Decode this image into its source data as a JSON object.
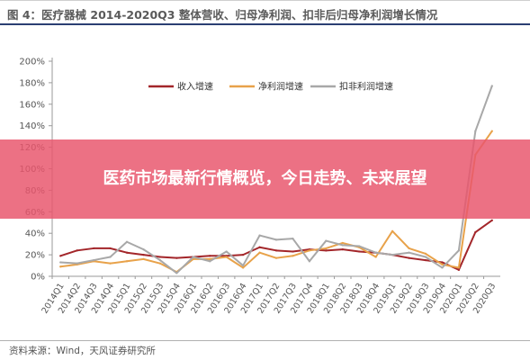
{
  "figure_title": "图 4：医疗器械 2014-2020Q3 整体营收、归母净利润、扣非后归母净利润增长情况",
  "banner_text": "医药市场最新行情概览，今日走势、未来展望",
  "source": "资料来源：Wind，天风证券研究所",
  "chart_data": {
    "type": "line",
    "categories": [
      "2014Q1",
      "2014Q2",
      "2014Q3",
      "2014Q4",
      "2015Q1",
      "2015Q2",
      "2015Q3",
      "2015Q4",
      "2016Q1",
      "2016Q2",
      "2016Q3",
      "2016Q4",
      "2017Q1",
      "2017Q2",
      "2017Q3",
      "2017Q4",
      "2018Q1",
      "2018Q2",
      "2018Q3",
      "2018Q4",
      "2019Q1",
      "2019Q2",
      "2019Q3",
      "2019Q4",
      "2020Q1",
      "2020Q2",
      "2020Q3"
    ],
    "yticks": [
      "0%",
      "20%",
      "40%",
      "60%",
      "80%",
      "100%",
      "120%",
      "140%",
      "160%",
      "180%",
      "200%"
    ],
    "ylim": [
      0,
      200
    ],
    "grid": false,
    "legend_position": "top",
    "series": [
      {
        "name": "收入增速",
        "color": "#a3262a",
        "values": [
          19,
          24,
          26,
          26,
          22,
          20,
          18,
          17,
          18,
          19,
          19,
          20,
          27,
          24,
          23,
          25,
          24,
          25,
          23,
          22,
          20,
          17,
          15,
          13,
          6,
          41,
          52
        ]
      },
      {
        "name": "净利润增速",
        "color": "#e8a24a",
        "values": [
          9,
          11,
          14,
          12,
          14,
          16,
          12,
          4,
          16,
          16,
          18,
          8,
          22,
          17,
          19,
          24,
          26,
          31,
          27,
          18,
          42,
          26,
          21,
          11,
          8,
          113,
          135
        ]
      },
      {
        "name": "扣非利润增速",
        "color": "#a8a8a8",
        "values": [
          13,
          12,
          15,
          18,
          32,
          25,
          15,
          3,
          18,
          14,
          23,
          10,
          38,
          34,
          35,
          14,
          33,
          29,
          28,
          22,
          20,
          22,
          18,
          8,
          24,
          135,
          177
        ]
      }
    ]
  }
}
